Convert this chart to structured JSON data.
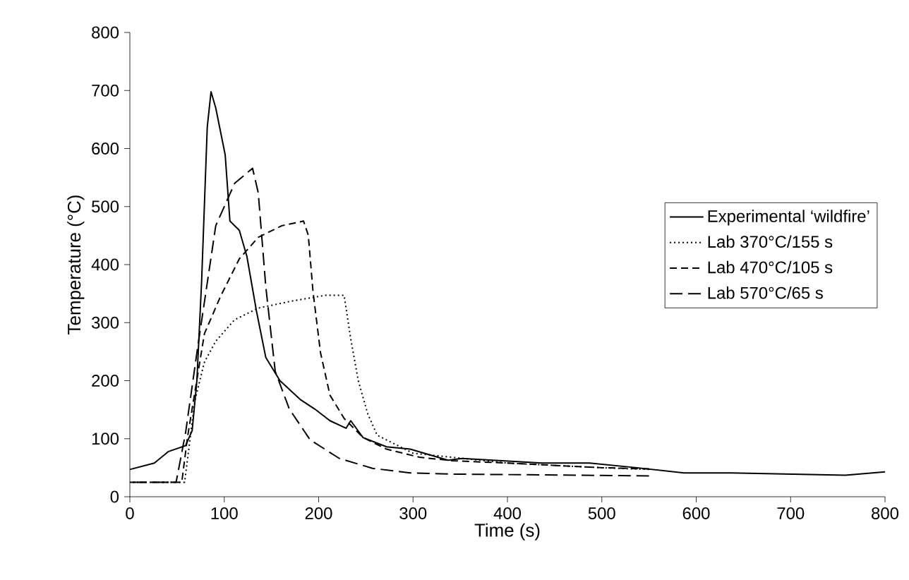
{
  "chart_data": {
    "type": "line",
    "xlabel": "Time (s)",
    "ylabel": "Temperature (°C)",
    "xlim": [
      0,
      800
    ],
    "ylim": [
      0,
      800
    ],
    "xticks": [
      0,
      100,
      200,
      300,
      400,
      500,
      600,
      700,
      800
    ],
    "yticks": [
      0,
      100,
      200,
      300,
      400,
      500,
      600,
      700,
      800
    ],
    "grid": false,
    "legend": "right",
    "marker": "none",
    "series": [
      {
        "name": "Experimental ‘wildfire’",
        "color": "#000000",
        "line_style": "solid",
        "x": [
          0,
          26,
          41,
          59,
          66,
          71,
          76,
          82,
          86,
          91,
          101,
          106,
          116,
          124,
          134,
          144,
          159,
          181,
          196,
          212,
          229,
          234,
          247,
          272,
          297,
          337,
          352,
          437,
          487,
          537,
          587,
          637,
          758,
          800
        ],
        "values": [
          47,
          58,
          78,
          88,
          114,
          200,
          370,
          637,
          698,
          670,
          589,
          475,
          459,
          414,
          321,
          240,
          200,
          167,
          151,
          131,
          118,
          131,
          102,
          86,
          82,
          63,
          66,
          58,
          58,
          50,
          41,
          41,
          37,
          43
        ]
      },
      {
        "name": "Lab 370°C/155 s",
        "color": "#000000",
        "line_style": "dotted",
        "x": [
          0,
          58,
          69,
          79,
          91,
          111,
          136,
          171,
          207,
          227,
          234,
          242,
          252,
          262,
          300,
          400,
          500,
          550
        ],
        "values": [
          25,
          25,
          167,
          232,
          268,
          305,
          325,
          337,
          347,
          347,
          272,
          200,
          143,
          106,
          75,
          58,
          50,
          47
        ]
      },
      {
        "name": "Lab 470°C/105 s",
        "color": "#000000",
        "line_style": "dashed",
        "x": [
          0,
          55,
          61,
          79,
          96,
          116,
          136,
          161,
          184,
          189,
          194,
          202,
          212,
          227,
          247,
          272,
          307,
          342,
          400,
          500,
          550
        ],
        "values": [
          25,
          25,
          102,
          281,
          345,
          410,
          447,
          467,
          475,
          451,
          354,
          248,
          175,
          135,
          102,
          82,
          68,
          62,
          58,
          50,
          48
        ]
      },
      {
        "name": "Lab 570°C/65 s",
        "color": "#000000",
        "line_style": "long dashed",
        "x": [
          0,
          49,
          59,
          71,
          91,
          111,
          130,
          136,
          144,
          154,
          169,
          191,
          222,
          257,
          297,
          342,
          550
        ],
        "values": [
          25,
          25,
          110,
          248,
          467,
          540,
          566,
          524,
          362,
          216,
          151,
          98,
          66,
          49,
          41,
          39,
          36
        ]
      }
    ]
  }
}
